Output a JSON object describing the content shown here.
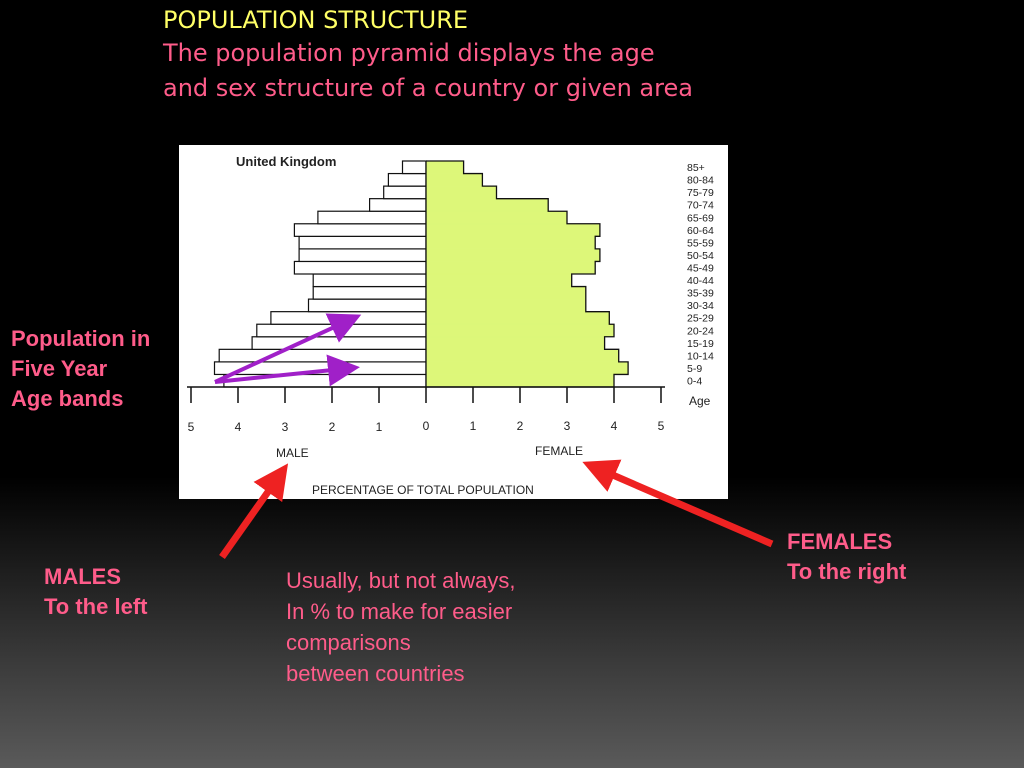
{
  "slide": {
    "title": "POPULATION STRUCTURE",
    "subtitle_lines": [
      "The population pyramid displays the age",
      "and sex structure of a country or given area"
    ],
    "left_label": "Population in\nFive Year\nAge bands",
    "males_label": "MALES\nTo the left",
    "females_label": "FEMALES\nTo the right",
    "note": "Usually, but not always,\nIn % to make for easier\ncomparisons\nbetween countries"
  },
  "colors": {
    "title": "#ffff66",
    "text": "#ff5c8a",
    "female_fill": "#ddf779",
    "arrow_purple": "#a020c8",
    "arrow_red": "#ee2222"
  },
  "chart_data": {
    "type": "bar",
    "orientation": "horizontal-pyramid",
    "title": "United Kingdom",
    "xlabel": "PERCENTAGE OF TOTAL POPULATION",
    "ylabel": "Age",
    "left_group_label": "MALE",
    "right_group_label": "FEMALE",
    "xlim": [
      0,
      5
    ],
    "x_ticks_left": [
      "5",
      "4",
      "3",
      "2",
      "1"
    ],
    "x_ticks_right": [
      "0",
      "1",
      "2",
      "3",
      "4",
      "5"
    ],
    "categories": [
      "0-4",
      "5-9",
      "10-14",
      "15-19",
      "20-24",
      "25-29",
      "30-34",
      "35-39",
      "40-44",
      "45-49",
      "50-54",
      "55-59",
      "60-64",
      "65-69",
      "70-74",
      "75-79",
      "80-84",
      "85+"
    ],
    "series": [
      {
        "name": "MALE",
        "values": [
          4.3,
          4.5,
          4.4,
          3.7,
          3.6,
          3.3,
          2.5,
          2.4,
          2.4,
          2.8,
          2.7,
          2.7,
          2.8,
          2.3,
          1.2,
          0.9,
          0.8,
          0.5
        ]
      },
      {
        "name": "FEMALE",
        "values": [
          4.0,
          4.3,
          4.1,
          3.8,
          4.0,
          3.9,
          3.4,
          3.4,
          3.1,
          3.6,
          3.7,
          3.6,
          3.7,
          3.0,
          2.6,
          1.5,
          1.2,
          0.8
        ]
      }
    ],
    "grid": false,
    "legend": "none"
  }
}
